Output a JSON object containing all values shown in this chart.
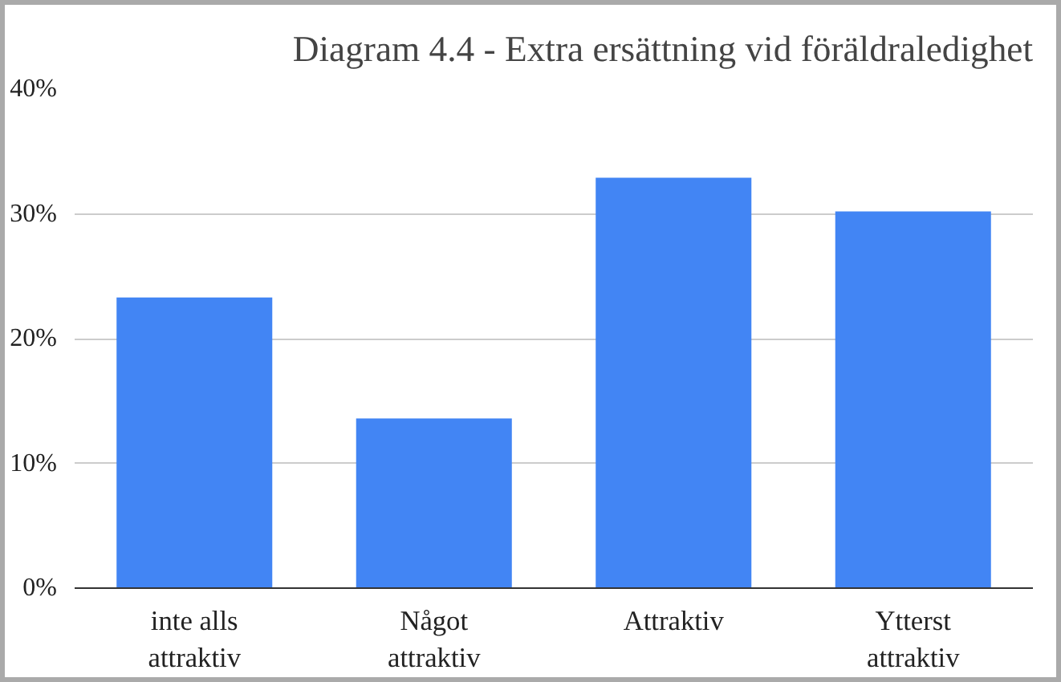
{
  "chart_data": {
    "type": "bar",
    "title": "Diagram 4.4 - Extra ersättning vid föräldraledighet",
    "categories": [
      "inte alls attraktiv",
      "Något attraktiv",
      "Attraktiv",
      "Ytterst attraktiv"
    ],
    "values": [
      23.3,
      13.6,
      32.9,
      30.2
    ],
    "color": "#4285f4",
    "ylim": [
      0,
      40
    ],
    "yticks": [
      {
        "value": 0,
        "label": "0%"
      },
      {
        "value": 10,
        "label": "10%"
      },
      {
        "value": 20,
        "label": "20%"
      },
      {
        "value": 30,
        "label": "30%"
      },
      {
        "value": 40,
        "label": "40%"
      }
    ],
    "grid": "y"
  }
}
